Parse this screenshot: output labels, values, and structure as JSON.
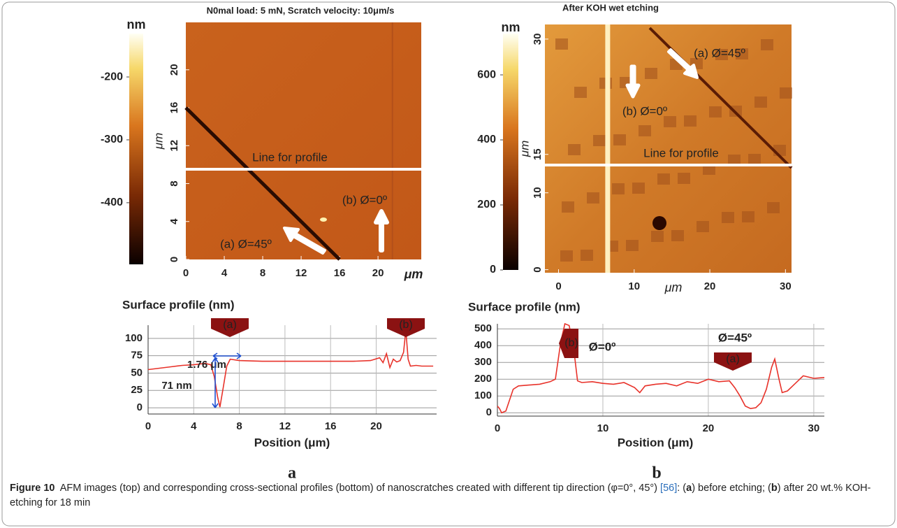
{
  "panels": [
    {
      "label": "a",
      "image": {
        "title": "N0mal load: 5 mN, Scratch velocity: 10μm/s",
        "colorbar_unit": "nm",
        "colorbar_lim": [
          -498,
          -131
        ],
        "colorbar_ticks": [
          -200,
          -300,
          -400
        ],
        "x_unit": "μm",
        "y_unit": "μm",
        "xlim": [
          0,
          24.5
        ],
        "ylim": [
          0,
          25
        ],
        "xticks": [
          0,
          4,
          8,
          12,
          16,
          20
        ],
        "yticks": [
          0,
          4,
          8,
          12,
          16,
          20
        ],
        "annotations": [
          "Line for profile",
          "(b) Ø=0º",
          "(a) Ø=45º"
        ]
      },
      "profile": {
        "title": "Surface profile (nm)",
        "xlabel": "Position (μm)",
        "xlim": [
          0,
          25.3
        ],
        "ylim": [
          -9,
          119
        ],
        "xticks": [
          0,
          4,
          8,
          12,
          16,
          20
        ],
        "yticks": [
          0,
          25,
          50,
          75,
          100
        ],
        "color": "#e8322a",
        "x": [
          0,
          1,
          2,
          3,
          4,
          5,
          5.5,
          5.8,
          6.1,
          6.3,
          6.6,
          6.9,
          7.2,
          8,
          10,
          12,
          14,
          16,
          18,
          19.5,
          20.3,
          20.6,
          20.9,
          21.2,
          21.5,
          21.8,
          22.1,
          22.4,
          22.6,
          22.8,
          23,
          23.5,
          24,
          25
        ],
        "values": [
          55,
          57,
          59,
          61,
          62,
          64,
          62,
          45,
          15,
          1,
          30,
          60,
          70,
          68,
          67,
          67,
          67,
          67,
          67,
          68,
          72,
          65,
          78,
          58,
          70,
          66,
          68,
          80,
          112,
          70,
          60,
          61,
          60,
          60
        ],
        "annotations": [
          "(a)",
          "(b)",
          "1.76 μm",
          "71 nm"
        ]
      }
    },
    {
      "label": "b",
      "image": {
        "title": "After KOH wet etching",
        "colorbar_unit": "nm",
        "colorbar_lim": [
          0,
          727
        ],
        "colorbar_ticks": [
          0,
          200,
          400,
          600
        ],
        "x_unit": "μm",
        "y_unit": "μm",
        "xlim": [
          -1.8,
          30.8
        ],
        "ylim": [
          -0.4,
          31.9
        ],
        "xticks": [
          0,
          10,
          20,
          30
        ],
        "yticks": [
          0,
          10,
          15,
          30
        ],
        "annotations": [
          "Line for profile",
          "(b) Ø=0º",
          "(a) Ø=45º"
        ]
      },
      "profile": {
        "title": "Surface profile (nm)",
        "xlabel": "Position (μm)",
        "xlim": [
          0,
          31
        ],
        "ylim": [
          -20,
          530
        ],
        "xticks": [
          0,
          10,
          20,
          30
        ],
        "yticks": [
          0,
          100,
          200,
          300,
          400,
          500
        ],
        "color": "#e8322a",
        "x": [
          0,
          0.2,
          0.4,
          0.8,
          1.5,
          2,
          3,
          4,
          5,
          5.5,
          6,
          6.4,
          6.8,
          7.2,
          7.6,
          8,
          9,
          10,
          11,
          12,
          13,
          13.5,
          14,
          15,
          16,
          17,
          18,
          19,
          20,
          21,
          22,
          22.5,
          23,
          23.5,
          24,
          24.5,
          25,
          25.5,
          26,
          26.3,
          26.7,
          27,
          27.5,
          28,
          29,
          30,
          31
        ],
        "values": [
          40,
          25,
          0,
          10,
          140,
          160,
          165,
          170,
          185,
          200,
          420,
          530,
          520,
          400,
          190,
          180,
          185,
          175,
          170,
          180,
          150,
          120,
          160,
          170,
          175,
          160,
          185,
          175,
          200,
          185,
          190,
          150,
          100,
          40,
          25,
          30,
          60,
          140,
          270,
          320,
          200,
          120,
          130,
          160,
          220,
          205,
          210
        ],
        "annotations": [
          "(b)",
          "Ø=0º",
          "Ø=45º",
          "(a)"
        ]
      }
    }
  ],
  "caption": {
    "label": "Figure 10",
    "text": "AFM images (top) and corresponding cross-sectional profiles (bottom) of nanoscratches created with different tip direction (φ=0°, 45°)",
    "reference": "[56]",
    "parts": [
      ": (",
      "a",
      ") before etching; (",
      "b",
      ") after 20 wt.% KOH-etching for 18 min"
    ]
  }
}
